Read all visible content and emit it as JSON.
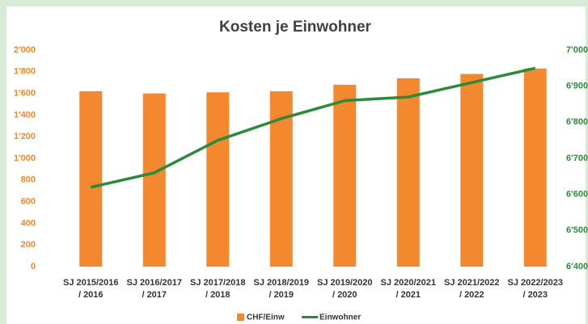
{
  "chart_data": {
    "type": "bar_line",
    "title": "Kosten je Einwohner",
    "categories": [
      [
        "SJ 2015/2016",
        "/ 2016"
      ],
      [
        "SJ 2016/2017",
        "/ 2017"
      ],
      [
        "SJ 2017/2018",
        "/ 2018"
      ],
      [
        "SJ 2018/2019",
        "/ 2019"
      ],
      [
        "SJ 2019/2020",
        "/ 2020"
      ],
      [
        "SJ 2020/2021",
        "/ 2021"
      ],
      [
        "SJ 2021/2022",
        "/ 2022"
      ],
      [
        "SJ 2022/2023",
        "/ 2023"
      ]
    ],
    "series": [
      {
        "name": "CHF/Einw",
        "type": "bar",
        "color": "#f3882f",
        "values": [
          1620,
          1600,
          1610,
          1620,
          1680,
          1740,
          1780,
          1830
        ]
      },
      {
        "name": "Einwohner",
        "type": "line",
        "axis": "y2",
        "color": "#2a8b3a",
        "values": [
          6620,
          6660,
          6750,
          6810,
          6860,
          6870,
          6910,
          6950
        ]
      }
    ],
    "ylim": [
      0,
      2000
    ],
    "yticks": [
      0,
      200,
      400,
      600,
      800,
      {
        "value": 1000,
        "label": "1'000"
      },
      {
        "value": 1200,
        "label": "1'200"
      },
      {
        "value": 1400,
        "label": "1'400"
      },
      {
        "value": 1600,
        "label": "1'600"
      },
      {
        "value": 1800,
        "label": "1'800"
      },
      {
        "value": 2000,
        "label": "2'000"
      }
    ],
    "y2lim": [
      6400,
      7000
    ],
    "y2ticks": [
      {
        "value": 6400,
        "label": "6'400"
      },
      {
        "value": 6500,
        "label": "6'500"
      },
      {
        "value": 6600,
        "label": "6'600"
      },
      {
        "value": 6700,
        "label": "6'700"
      },
      {
        "value": 6800,
        "label": "6'800"
      },
      {
        "value": 6900,
        "label": "6'900"
      },
      {
        "value": 7000,
        "label": "7'000"
      }
    ],
    "legend": "bottom"
  }
}
